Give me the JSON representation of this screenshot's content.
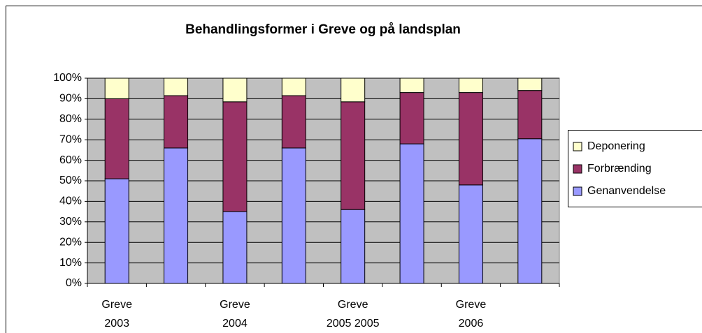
{
  "chart_data": {
    "type": "stacked_bar",
    "title": "Behandlingsformer i Greve og på landsplan",
    "categories": [
      "Greve 2003",
      null,
      "Greve 2004",
      null,
      "Greve 2005 2005",
      null,
      "Greve 2006",
      null
    ],
    "series": [
      {
        "name": "Genanvendelse",
        "color": "#9999ff",
        "values": [
          51,
          66,
          35,
          66,
          36,
          68,
          48,
          70.5
        ]
      },
      {
        "name": "Forbrænding",
        "color": "#993366",
        "values": [
          39,
          25.5,
          53.5,
          25.5,
          52.5,
          25,
          45,
          23.5
        ]
      },
      {
        "name": "Deponering",
        "color": "#ffffcc",
        "values": [
          10,
          8.5,
          11.5,
          8.5,
          11.5,
          7,
          7,
          6
        ]
      }
    ],
    "ylim": [
      0,
      100
    ],
    "yticks": [
      {
        "value": 0,
        "label": "0%"
      },
      {
        "value": 10,
        "label": "10%"
      },
      {
        "value": 20,
        "label": "20%"
      },
      {
        "value": 30,
        "label": "30%"
      },
      {
        "value": 40,
        "label": "40%"
      },
      {
        "value": 50,
        "label": "50%"
      },
      {
        "value": 60,
        "label": "60%"
      },
      {
        "value": 70,
        "label": "70%"
      },
      {
        "value": 80,
        "label": "80%"
      },
      {
        "value": 90,
        "label": "90%"
      },
      {
        "value": 100,
        "label": "100%"
      }
    ],
    "grid": true,
    "legend": "right"
  }
}
